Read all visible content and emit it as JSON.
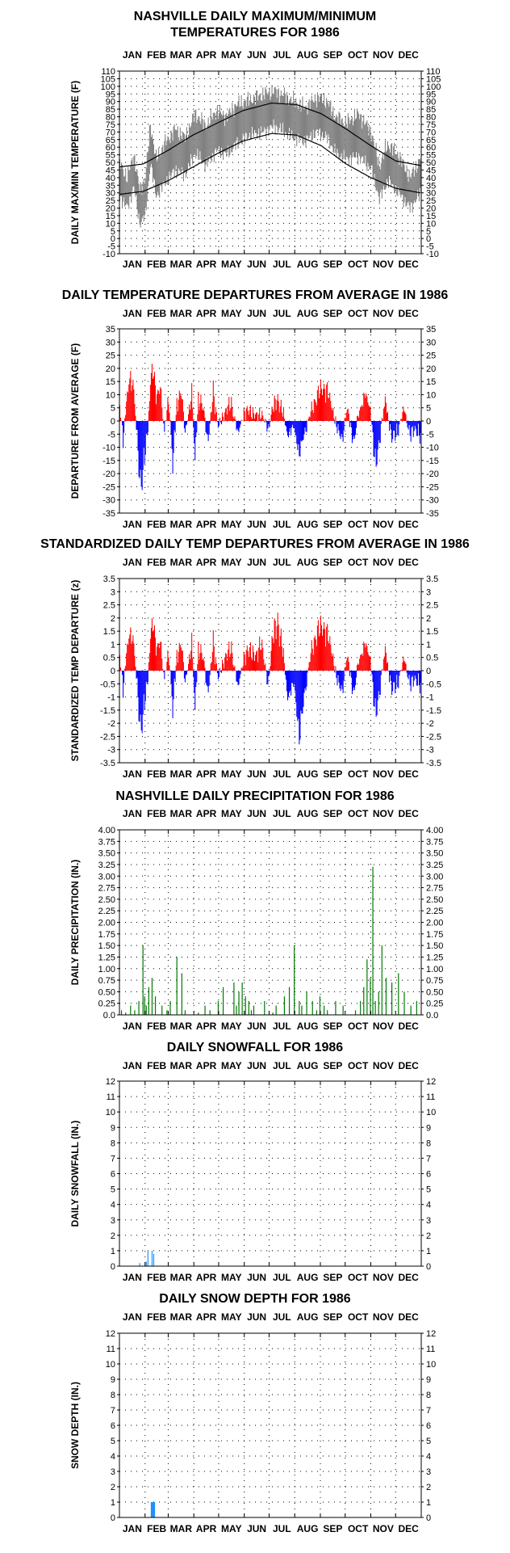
{
  "months": [
    "JAN",
    "FEB",
    "MAR",
    "APR",
    "MAY",
    "JUN",
    "JUL",
    "AUG",
    "SEP",
    "OCT",
    "NOV",
    "DEC"
  ],
  "colors": {
    "gray": "#808080",
    "red": "#ff0000",
    "blue": "#0000ff",
    "green": "#007a00",
    "lightblue": "#1e90ff"
  },
  "chart_data": [
    {
      "id": "temps",
      "type": "line",
      "title": [
        "NASHVILLE DAILY MAXIMUM/MINIMUM",
        "TEMPERATURES FOR 1986"
      ],
      "ylabel": "DAILY MAX/MIN TEMPERATURE (F)",
      "ylim": [
        -10,
        110
      ],
      "yticks": [
        -10,
        -5,
        0,
        5,
        10,
        15,
        20,
        25,
        30,
        35,
        40,
        45,
        50,
        55,
        60,
        65,
        70,
        75,
        80,
        85,
        90,
        95,
        100,
        105,
        110
      ],
      "x_unit": "day of year 1986",
      "normal_max_points": [
        [
          1,
          47
        ],
        [
          30,
          49
        ],
        [
          60,
          58
        ],
        [
          90,
          68
        ],
        [
          120,
          76
        ],
        [
          150,
          84
        ],
        [
          185,
          89
        ],
        [
          215,
          88
        ],
        [
          245,
          82
        ],
        [
          275,
          72
        ],
        [
          305,
          61
        ],
        [
          335,
          51
        ],
        [
          365,
          48
        ]
      ],
      "normal_min_points": [
        [
          1,
          29
        ],
        [
          30,
          31
        ],
        [
          60,
          38
        ],
        [
          90,
          47
        ],
        [
          120,
          56
        ],
        [
          150,
          64
        ],
        [
          185,
          69
        ],
        [
          215,
          68
        ],
        [
          245,
          61
        ],
        [
          275,
          49
        ],
        [
          305,
          40
        ],
        [
          335,
          33
        ],
        [
          365,
          30
        ]
      ],
      "observed_max_anchor_points": [
        [
          1,
          50
        ],
        [
          10,
          40
        ],
        [
          18,
          55
        ],
        [
          25,
          32
        ],
        [
          32,
          40
        ],
        [
          38,
          75
        ],
        [
          45,
          52
        ],
        [
          55,
          62
        ],
        [
          68,
          72
        ],
        [
          80,
          66
        ],
        [
          92,
          82
        ],
        [
          105,
          74
        ],
        [
          118,
          84
        ],
        [
          130,
          80
        ],
        [
          142,
          88
        ],
        [
          158,
          91
        ],
        [
          175,
          95
        ],
        [
          188,
          97
        ],
        [
          200,
          94
        ],
        [
          212,
          90
        ],
        [
          225,
          86
        ],
        [
          240,
          93
        ],
        [
          252,
          90
        ],
        [
          262,
          80
        ],
        [
          275,
          76
        ],
        [
          290,
          82
        ],
        [
          305,
          70
        ],
        [
          315,
          48
        ],
        [
          325,
          62
        ],
        [
          338,
          55
        ],
        [
          352,
          40
        ],
        [
          365,
          53
        ]
      ],
      "observed_min_anchor_points": [
        [
          1,
          28
        ],
        [
          10,
          20
        ],
        [
          18,
          34
        ],
        [
          25,
          10
        ],
        [
          32,
          15
        ],
        [
          38,
          50
        ],
        [
          45,
          28
        ],
        [
          55,
          36
        ],
        [
          68,
          45
        ],
        [
          80,
          42
        ],
        [
          92,
          56
        ],
        [
          105,
          48
        ],
        [
          118,
          58
        ],
        [
          130,
          55
        ],
        [
          142,
          62
        ],
        [
          158,
          68
        ],
        [
          175,
          70
        ],
        [
          188,
          74
        ],
        [
          200,
          70
        ],
        [
          212,
          66
        ],
        [
          225,
          64
        ],
        [
          240,
          70
        ],
        [
          252,
          66
        ],
        [
          262,
          56
        ],
        [
          275,
          52
        ],
        [
          290,
          54
        ],
        [
          305,
          46
        ],
        [
          315,
          26
        ],
        [
          325,
          38
        ],
        [
          338,
          30
        ],
        [
          352,
          20
        ],
        [
          365,
          30
        ]
      ]
    },
    {
      "id": "departures",
      "type": "bar",
      "title": "DAILY TEMPERATURE DEPARTURES FROM AVERAGE IN 1986",
      "ylabel": "DEPARTURE FROM AVERAGE (F)",
      "ylim": [
        -35,
        35
      ],
      "yticks": [
        -35,
        -30,
        -25,
        -20,
        -15,
        -10,
        -5,
        0,
        5,
        10,
        15,
        20,
        25,
        30,
        35
      ],
      "x_unit": "day of year 1986",
      "anchor_points": [
        [
          1,
          6
        ],
        [
          5,
          -8
        ],
        [
          10,
          12
        ],
        [
          14,
          20
        ],
        [
          18,
          15
        ],
        [
          22,
          -9
        ],
        [
          26,
          -31
        ],
        [
          30,
          -19
        ],
        [
          35,
          -4
        ],
        [
          38,
          18
        ],
        [
          41,
          26
        ],
        [
          45,
          10
        ],
        [
          50,
          16
        ],
        [
          55,
          -6
        ],
        [
          60,
          12
        ],
        [
          65,
          -20
        ],
        [
          70,
          8
        ],
        [
          75,
          14
        ],
        [
          80,
          -5
        ],
        [
          88,
          12
        ],
        [
          92,
          -16
        ],
        [
          96,
          10
        ],
        [
          102,
          6
        ],
        [
          108,
          -10
        ],
        [
          114,
          14
        ],
        [
          120,
          -3
        ],
        [
          128,
          4
        ],
        [
          136,
          8
        ],
        [
          144,
          -6
        ],
        [
          150,
          3
        ],
        [
          158,
          5
        ],
        [
          166,
          2
        ],
        [
          172,
          4
        ],
        [
          180,
          -4
        ],
        [
          186,
          6
        ],
        [
          192,
          10
        ],
        [
          198,
          4
        ],
        [
          204,
          -6
        ],
        [
          212,
          -3
        ],
        [
          218,
          -15
        ],
        [
          224,
          -6
        ],
        [
          232,
          4
        ],
        [
          240,
          12
        ],
        [
          246,
          15
        ],
        [
          252,
          14
        ],
        [
          258,
          6
        ],
        [
          264,
          -4
        ],
        [
          270,
          -8
        ],
        [
          276,
          6
        ],
        [
          284,
          -10
        ],
        [
          290,
          4
        ],
        [
          298,
          12
        ],
        [
          304,
          6
        ],
        [
          310,
          -21
        ],
        [
          316,
          -6
        ],
        [
          322,
          10
        ],
        [
          330,
          -8
        ],
        [
          338,
          -4
        ],
        [
          345,
          6
        ],
        [
          352,
          -7
        ],
        [
          358,
          -3
        ],
        [
          365,
          -8
        ]
      ]
    },
    {
      "id": "standardized",
      "type": "bar",
      "title": "STANDARDIZED DAILY TEMP DEPARTURES FROM AVERAGE IN 1986",
      "ylabel": "STANDARDIZED TEMP DEPARTURE (z)",
      "ylim": [
        -3.5,
        3.5
      ],
      "yticks": [
        -3.5,
        -3.0,
        -2.5,
        -2.0,
        -1.5,
        -1.0,
        -0.5,
        0.0,
        0.5,
        1.0,
        1.5,
        2.0,
        2.5,
        3.0,
        3.5
      ],
      "x_unit": "day of year 1986",
      "anchor_points": [
        [
          1,
          0.6
        ],
        [
          5,
          -0.8
        ],
        [
          10,
          1.1
        ],
        [
          14,
          1.7
        ],
        [
          18,
          1.3
        ],
        [
          22,
          -0.8
        ],
        [
          26,
          -2.8
        ],
        [
          30,
          -1.7
        ],
        [
          35,
          -0.4
        ],
        [
          38,
          1.6
        ],
        [
          41,
          2.4
        ],
        [
          45,
          0.9
        ],
        [
          50,
          1.4
        ],
        [
          55,
          -0.5
        ],
        [
          60,
          1.0
        ],
        [
          65,
          -1.8
        ],
        [
          70,
          0.7
        ],
        [
          75,
          1.3
        ],
        [
          80,
          -0.5
        ],
        [
          88,
          1.2
        ],
        [
          92,
          -1.6
        ],
        [
          96,
          1.0
        ],
        [
          102,
          0.6
        ],
        [
          108,
          -1.1
        ],
        [
          114,
          1.4
        ],
        [
          120,
          -0.4
        ],
        [
          128,
          0.6
        ],
        [
          136,
          1.0
        ],
        [
          144,
          -0.8
        ],
        [
          150,
          0.5
        ],
        [
          158,
          1.0
        ],
        [
          166,
          0.6
        ],
        [
          172,
          1.4
        ],
        [
          180,
          -0.7
        ],
        [
          186,
          1.6
        ],
        [
          192,
          2.2
        ],
        [
          198,
          1.0
        ],
        [
          204,
          -1.2
        ],
        [
          212,
          -0.6
        ],
        [
          218,
          -3.0
        ],
        [
          224,
          -1.2
        ],
        [
          232,
          0.8
        ],
        [
          240,
          1.8
        ],
        [
          246,
          2.0
        ],
        [
          252,
          1.7
        ],
        [
          258,
          0.8
        ],
        [
          264,
          -0.5
        ],
        [
          270,
          -0.9
        ],
        [
          276,
          0.7
        ],
        [
          284,
          -1.1
        ],
        [
          290,
          0.5
        ],
        [
          298,
          1.2
        ],
        [
          304,
          0.6
        ],
        [
          310,
          -2.1
        ],
        [
          316,
          -0.7
        ],
        [
          322,
          1.0
        ],
        [
          330,
          -0.9
        ],
        [
          338,
          -0.5
        ],
        [
          345,
          0.6
        ],
        [
          352,
          -0.7
        ],
        [
          358,
          -0.3
        ],
        [
          365,
          -0.8
        ]
      ]
    },
    {
      "id": "precip",
      "type": "bar",
      "title": "NASHVILLE DAILY PRECIPITATION FOR 1986",
      "ylabel": "DAILY PRECIPITATION (IN.)",
      "ylim": [
        0,
        4
      ],
      "yticks": [
        "0.0",
        "0.25",
        "0.50",
        "0.75",
        "1.00",
        "1.25",
        "1.50",
        "1.75",
        "2.00",
        "2.25",
        "2.50",
        "2.75",
        "3.00",
        "3.25",
        "3.50",
        "3.75",
        "4.00"
      ],
      "x_unit": "day of year 1986",
      "days": [
        3,
        8,
        14,
        19,
        24,
        29,
        31,
        33,
        36,
        40,
        44,
        52,
        58,
        62,
        70,
        76,
        80,
        96,
        104,
        110,
        120,
        126,
        139,
        142,
        145,
        149,
        153,
        157,
        160,
        163,
        176,
        186,
        190,
        200,
        206,
        212,
        218,
        221,
        227,
        234,
        239,
        243,
        248,
        252,
        262,
        271,
        286,
        292,
        296,
        300,
        304,
        307,
        310,
        314,
        318,
        323,
        330,
        338,
        345,
        353,
        360
      ],
      "values": [
        0.1,
        0.05,
        0.2,
        0.1,
        0.3,
        1.5,
        0.4,
        0.2,
        0.6,
        0.8,
        0.4,
        0.2,
        0.1,
        0.3,
        1.25,
        0.9,
        0.1,
        0.05,
        0.2,
        0.1,
        0.3,
        0.6,
        0.7,
        0.2,
        0.5,
        0.7,
        0.4,
        0.3,
        0.1,
        0.2,
        0.3,
        0.05,
        0.2,
        0.4,
        0.6,
        1.5,
        0.3,
        0.2,
        0.5,
        0.3,
        0.1,
        0.4,
        0.2,
        0.1,
        0.3,
        0.2,
        0.1,
        0.3,
        0.6,
        1.2,
        0.8,
        3.2,
        0.3,
        0.5,
        1.5,
        0.8,
        0.7,
        0.9,
        0.5,
        0.2,
        0.3
      ]
    },
    {
      "id": "snowfall",
      "type": "bar",
      "title": "DAILY SNOWFALL FOR 1986",
      "ylabel": "DAILY SNOWFALL (IN.)",
      "ylim": [
        0,
        12
      ],
      "yticks": [
        0,
        1,
        2,
        3,
        4,
        5,
        6,
        7,
        8,
        9,
        10,
        11,
        12
      ],
      "x_unit": "day of year 1986",
      "days": [
        25,
        33,
        35,
        40,
        42
      ],
      "values": [
        0.2,
        0.3,
        1.0,
        1.0,
        0.8
      ]
    },
    {
      "id": "snowdepth",
      "type": "bar",
      "title": "DAILY SNOW DEPTH FOR 1986",
      "ylabel": "SNOW DEPTH (IN.)",
      "ylim": [
        0,
        12
      ],
      "yticks": [
        0,
        1,
        2,
        3,
        4,
        5,
        6,
        7,
        8,
        9,
        10,
        11,
        12
      ],
      "x_unit": "day of year 1986",
      "days": [
        39,
        40,
        41,
        42,
        43
      ],
      "values": [
        1.0,
        1.0,
        1.0,
        1.0,
        1.0
      ]
    }
  ]
}
